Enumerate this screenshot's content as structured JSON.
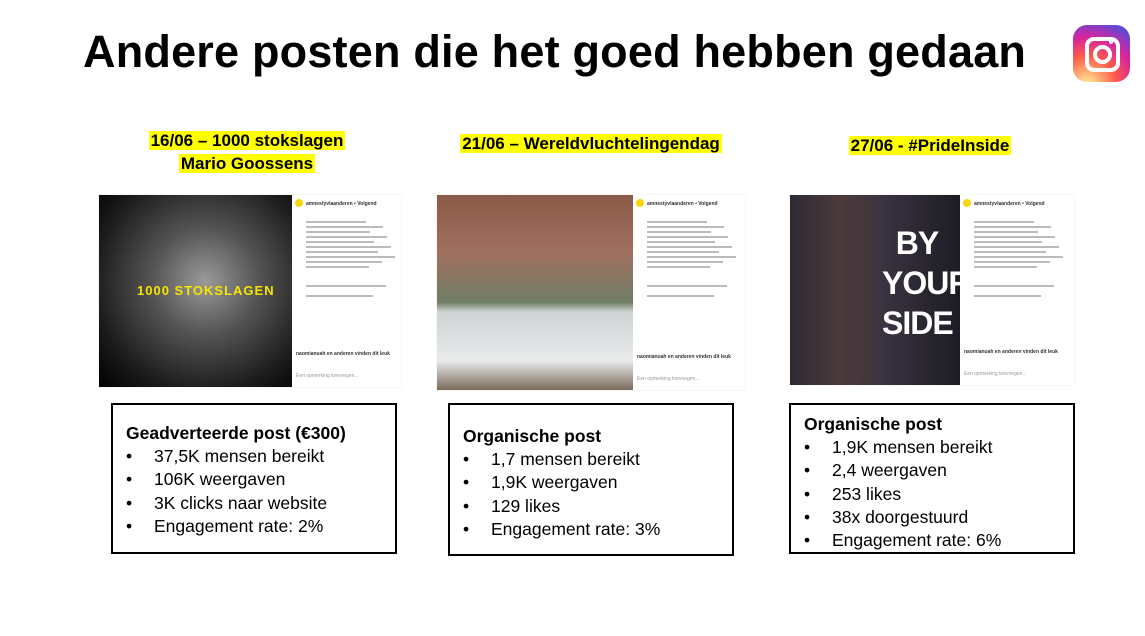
{
  "title": "Andere posten die het goed hebben gedaan",
  "columns": [
    {
      "header": [
        "16/06 – 1000 stokslagen",
        "Mario Goossens"
      ],
      "post": {
        "overlay": "1000 STOKSLAGEN",
        "account": "amnestyvlaanderen • Volgend",
        "likes": "naomianuah en anderen vinden dit leuk",
        "comment": "Een opmerking toevoegen..."
      },
      "box": {
        "heading": "Geadverteerde post (€300)",
        "bullets": [
          "37,5K mensen bereikt",
          "106K weergaven",
          "3K clicks naar website",
          "Engagement rate: 2%"
        ]
      }
    },
    {
      "header": [
        "21/06 – Wereldvluchtelingendag"
      ],
      "post": {
        "overlay": "",
        "account": "amnestyvlaanderen • Volgend",
        "likes": "naomianuah en anderen vinden dit leuk",
        "comment": "Een opmerking toevoegen..."
      },
      "box": {
        "heading": "Organische post",
        "bullets": [
          "1,7 mensen bereikt",
          "1,9K weergaven",
          "129 likes",
          "Engagement rate: 3%"
        ]
      }
    },
    {
      "header": [
        "27/06 - #PrideInside"
      ],
      "post": {
        "overlay": "BY YOUR SIDE",
        "account": "amnestyvlaanderen • Volgend",
        "likes": "naomianuah en anderen vinden dit leuk",
        "comment": "Een opmerking toevoegen..."
      },
      "box": {
        "heading": "Organische post",
        "bullets": [
          "1,9K mensen bereikt",
          "2,4 weergaven",
          "253 likes",
          "38x doorgestuurd",
          "Engagement rate: 6%"
        ]
      }
    }
  ]
}
